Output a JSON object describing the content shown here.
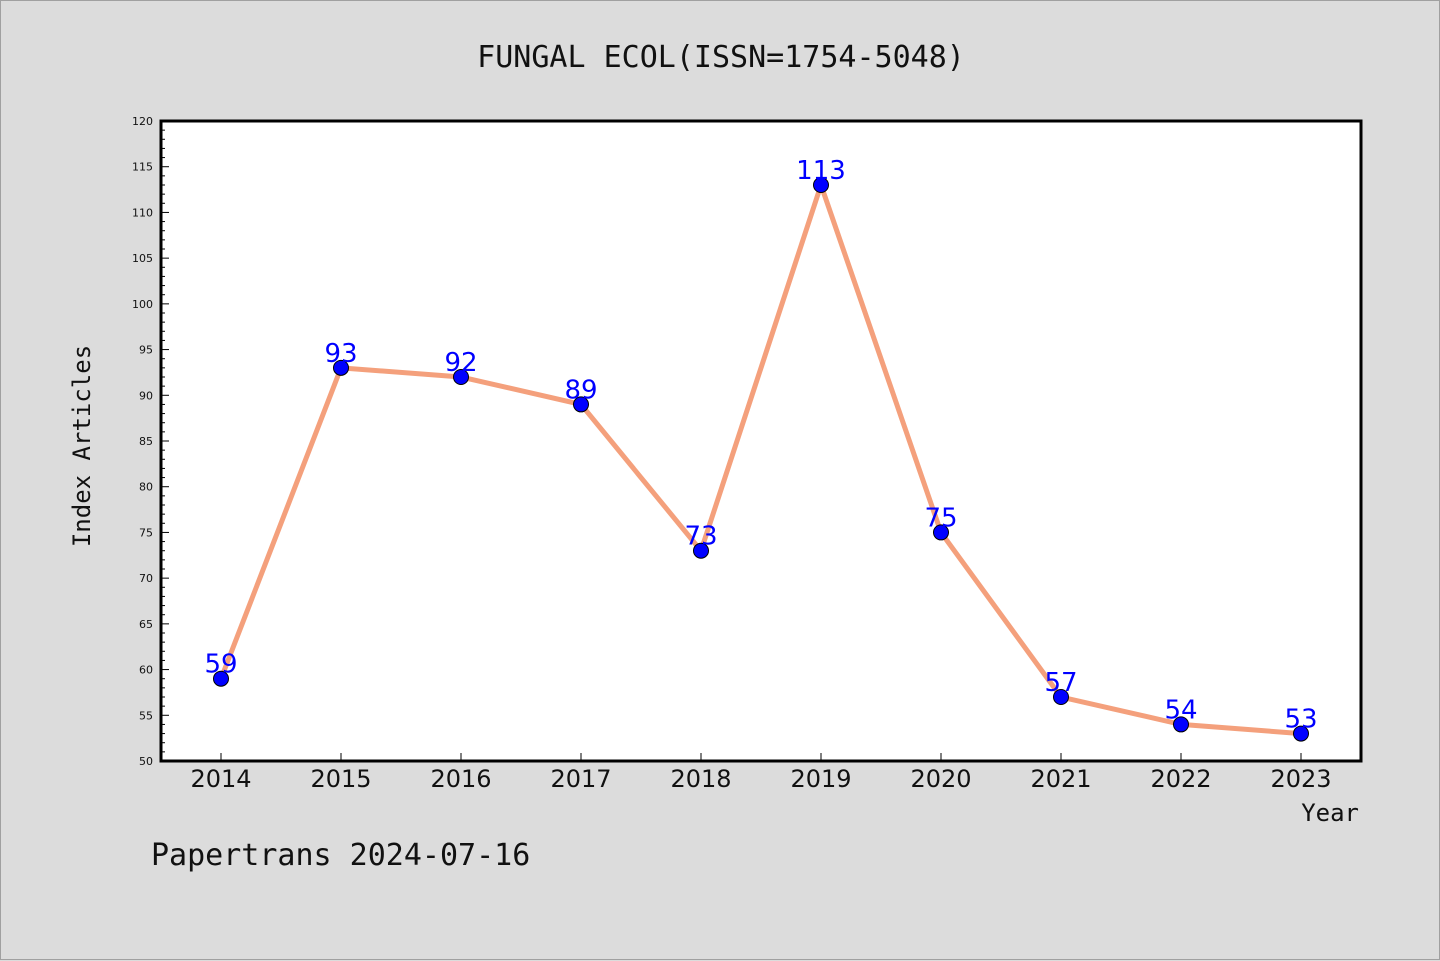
{
  "footer": "Papertrans 2024-07-16",
  "colors": {
    "line": "#f4a07c",
    "marker": "#0000ff",
    "label": "#0000ff",
    "background": "#dcdcdc",
    "plot_background": "#ffffff"
  },
  "chart_data": {
    "type": "line",
    "title": "FUNGAL ECOL(ISSN=1754-5048)",
    "xlabel": "Year",
    "ylabel": "Index Articles",
    "x": [
      "2014",
      "2015",
      "2016",
      "2017",
      "2018",
      "2019",
      "2020",
      "2021",
      "2022",
      "2023"
    ],
    "series": [
      {
        "values": [
          59,
          93,
          92,
          89,
          73,
          113,
          75,
          57,
          54,
          53
        ]
      }
    ],
    "ylim": [
      50,
      120
    ],
    "yticks": [
      50,
      55,
      60,
      65,
      70,
      75,
      80,
      85,
      90,
      95,
      100,
      105,
      110,
      115,
      120
    ],
    "grid": false,
    "legend": "none",
    "data_labels": true
  }
}
